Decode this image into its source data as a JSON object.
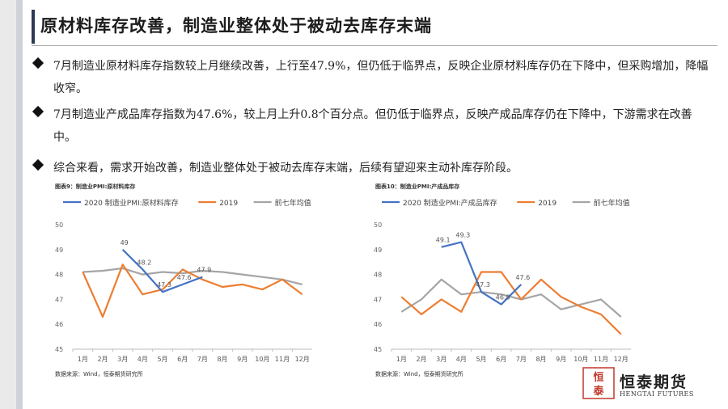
{
  "title": "原材料库存改善，制造业整体处于被动去库存末端",
  "bullets": [
    {
      "text": "7月制造业原材料库存指数较上月继续改善，上行至47.9%，但仍低于临界点，反映企业原材料库存仍在下降中，但采购增加，降幅收窄。"
    },
    {
      "text": "7月制造业产成品库存指数为47.6%，较上月上升0.8个百分点。但仍低于临界点，反映产成品库存仍在下降中，下游需求在改善中。"
    },
    {
      "text": "综合来看，需求开始改善，制造业整体处于被动去库存末端，后续有望迎来主动补库存阶段。"
    }
  ],
  "figures": [
    {
      "label": "图表9：制造业PMI:原材料库存",
      "source": "数据来源：Wind，恒泰期货研究所"
    },
    {
      "label": "图表10：制造业PMI:产成品库存",
      "source": "数据来源：Wind，恒泰期货研究所"
    }
  ],
  "colors": {
    "blue": "#4472c4",
    "orange": "#ed7d31",
    "gray": "#a5a5a5"
  },
  "logo": {
    "glyphs": "恒泰",
    "cn": "恒泰期货",
    "en": "HENGTAI FUTURES"
  },
  "chart_data": [
    {
      "type": "line",
      "categories": [
        "1月",
        "2月",
        "3月",
        "4月",
        "5月",
        "6月",
        "7月",
        "8月",
        "9月",
        "10月",
        "11月",
        "12月"
      ],
      "ylim": [
        45,
        50
      ],
      "yticks": [
        45,
        46,
        47,
        48,
        49,
        50
      ],
      "legend_position": "top",
      "grid": false,
      "series": [
        {
          "name": "2020 制造业PMI:原材料库存",
          "color": "blue",
          "values": [
            null,
            null,
            49,
            48.2,
            47.3,
            47.6,
            47.9,
            null,
            null,
            null,
            null,
            null
          ],
          "labels": [
            null,
            null,
            "49",
            "48.2",
            "47.3",
            "47.6",
            "47.9",
            null,
            null,
            null,
            null,
            null
          ]
        },
        {
          "name": "2019",
          "color": "orange",
          "values": [
            48.1,
            46.3,
            48.4,
            47.2,
            47.4,
            48.2,
            47.8,
            47.5,
            47.6,
            47.4,
            47.8,
            47.2
          ]
        },
        {
          "name": "前七年均值",
          "color": "gray",
          "values": [
            48.1,
            48.15,
            48.25,
            48.0,
            48.1,
            48.05,
            48.15,
            48.1,
            48.0,
            47.9,
            47.8,
            47.6
          ]
        }
      ]
    },
    {
      "type": "line",
      "categories": [
        "1月",
        "2月",
        "3月",
        "4月",
        "5月",
        "6月",
        "7月",
        "8月",
        "9月",
        "10月",
        "11月",
        "12月"
      ],
      "ylim": [
        45,
        50
      ],
      "yticks": [
        45,
        46,
        47,
        48,
        49,
        50
      ],
      "legend_position": "top",
      "grid": false,
      "series": [
        {
          "name": "2020 制造业PMI:产成品库存",
          "color": "blue",
          "values": [
            null,
            null,
            49.1,
            49.3,
            47.3,
            46.8,
            47.6,
            null,
            null,
            null,
            null,
            null
          ],
          "labels": [
            null,
            null,
            "49.1",
            "49.3",
            "47.3",
            "46.8",
            "47.6",
            null,
            null,
            null,
            null,
            null
          ]
        },
        {
          "name": "2019",
          "color": "orange",
          "values": [
            47.1,
            46.4,
            47.0,
            46.5,
            48.1,
            48.1,
            47.0,
            47.8,
            47.1,
            46.7,
            46.4,
            45.6
          ]
        },
        {
          "name": "前七年均值",
          "color": "gray",
          "values": [
            46.5,
            47.0,
            47.8,
            47.2,
            47.3,
            47.2,
            47.0,
            47.2,
            46.6,
            46.8,
            47.0,
            46.3
          ]
        }
      ]
    }
  ]
}
